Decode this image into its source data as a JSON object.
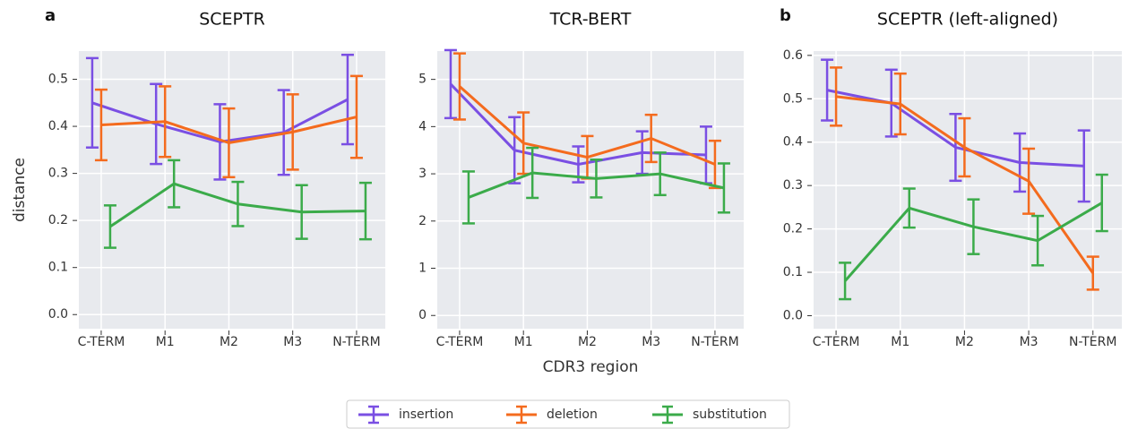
{
  "chart_data": [
    {
      "type": "line",
      "panel_label": "a",
      "title": "SCEPTR",
      "ylabel": "distance",
      "categories": [
        "C-TERM",
        "M1",
        "M2",
        "M3",
        "N-TERM"
      ],
      "ylim": [
        -0.03,
        0.56
      ],
      "yticks": [
        {
          "value": 0,
          "label": "0.0"
        },
        0.1,
        0.2,
        0.3,
        0.4,
        0.5
      ],
      "grid": true,
      "series": [
        {
          "name": "insertion",
          "color": "#7a4fe3",
          "values": [
            0.45,
            0.405,
            0.367,
            0.387,
            0.457
          ],
          "errors": [
            0.095,
            0.085,
            0.08,
            0.09,
            0.095
          ]
        },
        {
          "name": "deletion",
          "color": "#f46b1e",
          "values": [
            0.403,
            0.41,
            0.365,
            0.388,
            0.42
          ],
          "errors": [
            0.075,
            0.075,
            0.073,
            0.08,
            0.087
          ]
        },
        {
          "name": "substitution",
          "color": "#3bab4a",
          "values": [
            0.187,
            0.278,
            0.235,
            0.218,
            0.22
          ],
          "errors": [
            0.045,
            0.05,
            0.047,
            0.057,
            0.06
          ]
        }
      ]
    },
    {
      "type": "line",
      "title": "TCR-BERT",
      "xlabel": "CDR3 region",
      "categories": [
        "C-TERM",
        "M1",
        "M2",
        "M3",
        "N-TERM"
      ],
      "ylim": [
        -0.28,
        5.6
      ],
      "yticks": [
        0,
        1,
        2,
        3,
        4,
        5
      ],
      "grid": true,
      "series": [
        {
          "name": "insertion",
          "color": "#7a4fe3",
          "values": [
            4.9,
            3.5,
            3.2,
            3.45,
            3.4
          ],
          "errors": [
            0.72,
            0.7,
            0.38,
            0.45,
            0.6
          ]
        },
        {
          "name": "deletion",
          "color": "#f46b1e",
          "values": [
            4.85,
            3.65,
            3.35,
            3.75,
            3.2
          ],
          "errors": [
            0.7,
            0.65,
            0.45,
            0.5,
            0.5
          ]
        },
        {
          "name": "substitution",
          "color": "#3bab4a",
          "values": [
            2.5,
            3.02,
            2.9,
            3.0,
            2.7
          ],
          "errors": [
            0.55,
            0.53,
            0.4,
            0.45,
            0.52
          ]
        }
      ]
    },
    {
      "type": "line",
      "panel_label": "b",
      "title": "SCEPTR (left-aligned)",
      "categories": [
        "C-TERM",
        "M1",
        "M2",
        "M3",
        "N-TERM"
      ],
      "ylim": [
        -0.03,
        0.61
      ],
      "yticks": [
        {
          "value": 0,
          "label": "0.0"
        },
        0.1,
        0.2,
        0.3,
        0.4,
        0.5,
        0.6
      ],
      "grid": true,
      "series": [
        {
          "name": "insertion",
          "color": "#7a4fe3",
          "values": [
            0.52,
            0.49,
            0.388,
            0.353,
            0.345
          ],
          "errors": [
            0.07,
            0.077,
            0.077,
            0.067,
            0.082
          ]
        },
        {
          "name": "deletion",
          "color": "#f46b1e",
          "values": [
            0.505,
            0.488,
            0.388,
            0.31,
            0.098
          ],
          "errors": [
            0.067,
            0.07,
            0.067,
            0.075,
            0.038
          ]
        },
        {
          "name": "substitution",
          "color": "#3bab4a",
          "values": [
            0.08,
            0.248,
            0.205,
            0.173,
            0.26
          ],
          "errors": [
            0.042,
            0.045,
            0.063,
            0.057,
            0.065
          ]
        }
      ]
    }
  ]
}
